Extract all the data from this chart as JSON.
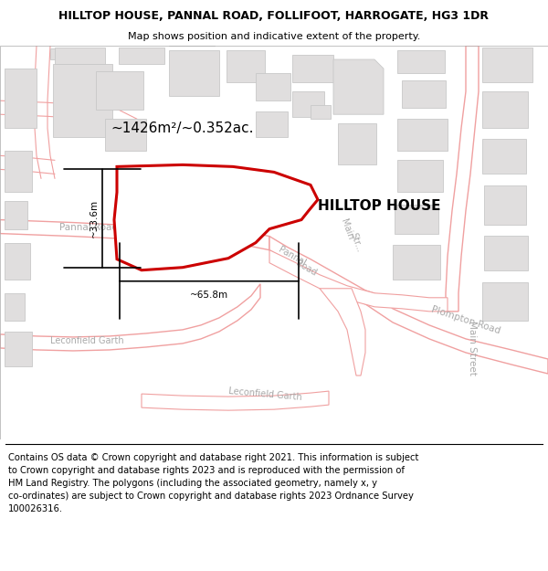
{
  "title": "HILLTOP HOUSE, PANNAL ROAD, FOLLIFOOT, HARROGATE, HG3 1DR",
  "subtitle": "Map shows position and indicative extent of the property.",
  "footer": "Contains OS data © Crown copyright and database right 2021. This information is subject\nto Crown copyright and database rights 2023 and is reproduced with the permission of\nHM Land Registry. The polygons (including the associated geometry, namely x, y\nco-ordinates) are subject to Crown copyright and database rights 2023 Ordnance Survey\n100026316.",
  "map_bg": "#faf8f8",
  "road_color": "#f0a0a0",
  "road_lw": 1.0,
  "building_fill": "#e0dede",
  "building_edge": "#c8c8c8",
  "property_fill": "#ffffff",
  "property_edge": "#cc0000",
  "property_lw": 2.2,
  "area_label": "~1426m²/~0.352ac.",
  "width_label": "~65.8m",
  "height_label": "~33.6m",
  "house_label": "HILLTOP HOUSE",
  "title_fontsize": 9.0,
  "subtitle_fontsize": 8.0,
  "footer_fontsize": 7.2,
  "label_color": "#aaaaaa",
  "road_label_size": 7.5
}
